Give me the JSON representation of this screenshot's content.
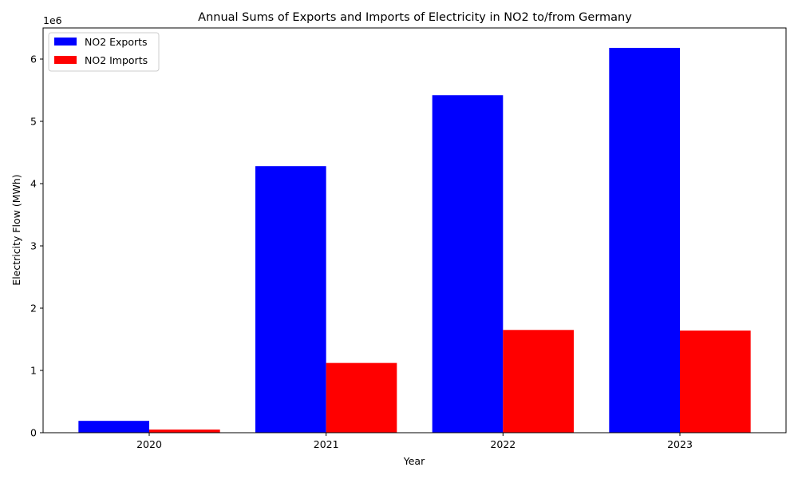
{
  "chart_data": {
    "type": "bar",
    "title": "Annual Sums of Exports and Imports of Electricity in NO2 to/from Germany",
    "xlabel": "Year",
    "ylabel": "Electricity Flow (MWh)",
    "y_offset_label": "1e6",
    "categories": [
      "2020",
      "2021",
      "2022",
      "2023"
    ],
    "series": [
      {
        "name": "NO2 Exports",
        "color": "#0000ff",
        "values": [
          190000,
          4280000,
          5420000,
          6180000
        ]
      },
      {
        "name": "NO2 Imports",
        "color": "#ff0000",
        "values": [
          50000,
          1120000,
          1650000,
          1640000
        ]
      }
    ],
    "ylim": [
      0,
      6500000
    ],
    "y_ticks": [
      0,
      1000000,
      2000000,
      3000000,
      4000000,
      5000000,
      6000000
    ],
    "y_tick_labels": [
      "0",
      "1",
      "2",
      "3",
      "4",
      "5",
      "6"
    ],
    "legend_position": "top-left",
    "grid": false
  }
}
